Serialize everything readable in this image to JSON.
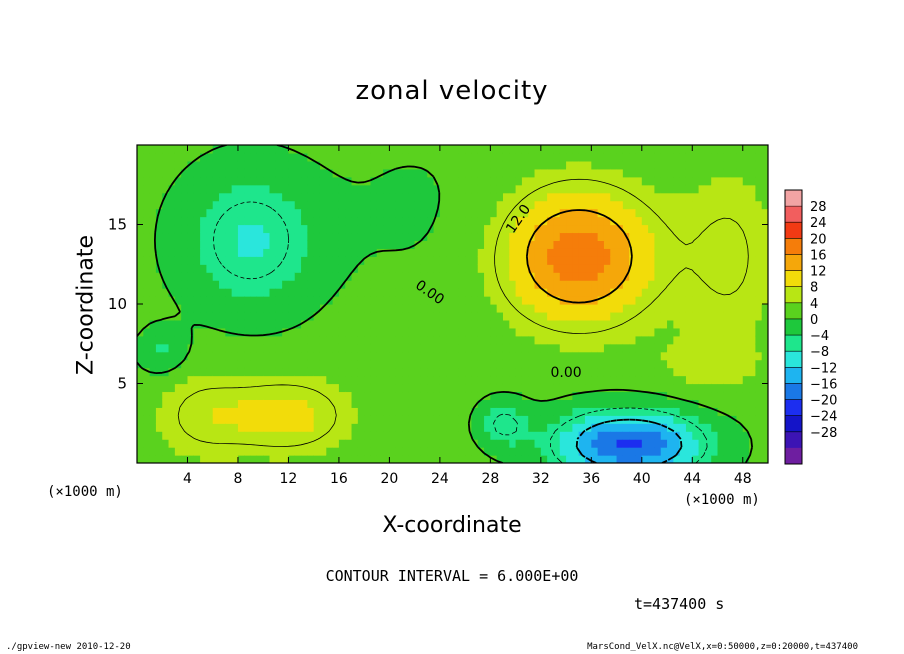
{
  "chart_data": {
    "type": "heatmap",
    "title": "zonal velocity",
    "xlabel": "X-coordinate",
    "ylabel": "Z-coordinate",
    "x_unit": "(×1000 m)",
    "y_unit": "(×1000 m)",
    "xlim": [
      0,
      50
    ],
    "ylim": [
      0,
      20
    ],
    "x_ticks": [
      4,
      8,
      12,
      16,
      20,
      24,
      28,
      32,
      36,
      40,
      44,
      48
    ],
    "y_ticks": [
      5,
      10,
      15
    ],
    "colorbar": {
      "labels": [
        28,
        24,
        20,
        16,
        12,
        8,
        4,
        0,
        -4,
        -8,
        -12,
        -16,
        -20,
        -24,
        -28
      ],
      "colors": [
        "#f2a3a3",
        "#f25e5e",
        "#f23a14",
        "#f57d0a",
        "#f5a70a",
        "#f2dc0a",
        "#b8e614",
        "#5ad21e",
        "#1ec83c",
        "#1ee68c",
        "#2ae6dc",
        "#1eb4f0",
        "#1a78e6",
        "#1c2ef0",
        "#1414c8",
        "#3c14b4",
        "#6e1ea0"
      ]
    },
    "contour_labels": [
      "12.0",
      "0.00",
      "0.00"
    ],
    "contour_interval": 6.0,
    "features": [
      {
        "kind": "positive_max",
        "x": 35,
        "z": 13,
        "value": 18
      },
      {
        "kind": "negative_min",
        "x": 38,
        "z": 1,
        "value": -20
      },
      {
        "kind": "negative_min",
        "x": 10,
        "z": 13,
        "value": -8
      }
    ]
  },
  "notes": {
    "x_unit": "(×1000 m)",
    "y_unit": "(×1000 m)",
    "contour_interval": "CONTOUR INTERVAL = 6.000E+00",
    "time": "t=437400 s",
    "footer_left": "./gpview-new  2010-12-20",
    "footer_right": "MarsCond_VelX.nc@VelX,x=0:50000,z=0:20000,t=437400"
  }
}
